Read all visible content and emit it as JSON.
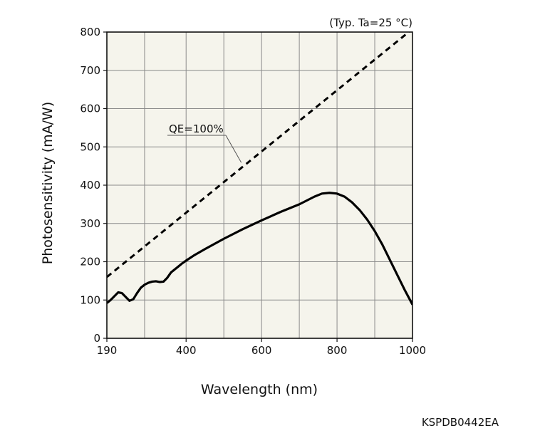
{
  "chart_data": {
    "type": "line",
    "title": "",
    "condition_note": "(Typ. Ta=25 °C)",
    "figure_code": "KSPDB0442EA",
    "xlabel": "Wavelength (nm)",
    "ylabel": "Photosensitivity (mA/W)",
    "xlim": [
      190,
      1000
    ],
    "ylim": [
      0,
      800
    ],
    "x_ticks": [
      190,
      400,
      600,
      800,
      1000
    ],
    "x_grid": [
      290,
      400,
      500,
      600,
      700,
      800,
      900
    ],
    "y_ticks": [
      0,
      100,
      200,
      300,
      400,
      500,
      600,
      700,
      800
    ],
    "grid": true,
    "series": [
      {
        "name": "Photosensitivity",
        "style": "solid",
        "x": [
          190,
          200,
          210,
          220,
          230,
          240,
          250,
          260,
          270,
          280,
          290,
          300,
          310,
          320,
          330,
          340,
          350,
          360,
          370,
          380,
          390,
          400,
          420,
          450,
          500,
          550,
          600,
          650,
          700,
          740,
          760,
          780,
          800,
          820,
          840,
          860,
          880,
          900,
          920,
          940,
          960,
          980,
          1000
        ],
        "values": [
          92,
          100,
          110,
          120,
          118,
          108,
          98,
          102,
          118,
          132,
          140,
          145,
          148,
          149,
          147,
          148,
          158,
          172,
          180,
          188,
          196,
          203,
          216,
          233,
          260,
          285,
          308,
          330,
          350,
          370,
          378,
          380,
          378,
          370,
          355,
          335,
          310,
          280,
          245,
          205,
          165,
          125,
          88
        ]
      },
      {
        "name": "QE=100%",
        "style": "dashed",
        "x": [
          190,
          1000
        ],
        "values": [
          160,
          808
        ]
      }
    ],
    "annotations": [
      {
        "text": "QE=100%",
        "points_to_x": 550,
        "points_to_series": "QE=100%"
      }
    ]
  }
}
